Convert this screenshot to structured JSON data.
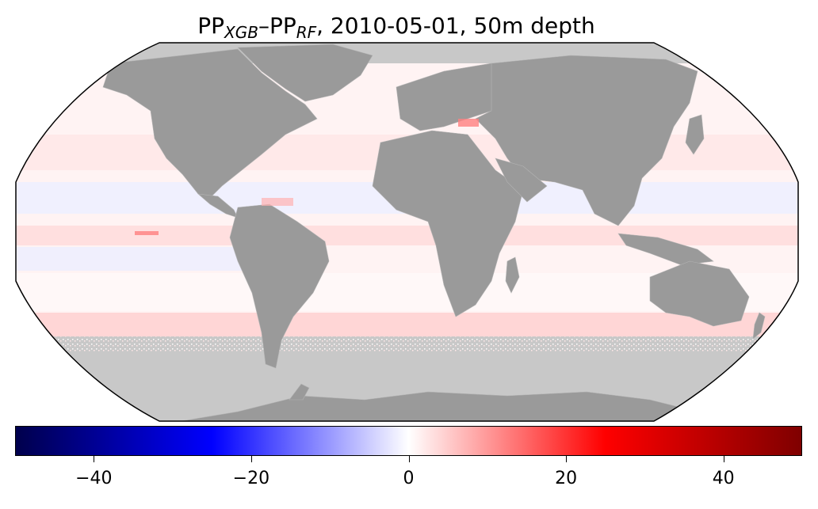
{
  "title": {
    "prefix": "PP",
    "sub1": "XGB",
    "dash": "–PP",
    "sub2": "RF",
    "suffix": ", 2010-05-01, 50m depth"
  },
  "colors": {
    "land": "#9a9a9a",
    "nodata": "#c8c8c8",
    "ocean_base": "#fff4f4",
    "border": "#000000",
    "colormap": [
      "#00004c",
      "#0000ff",
      "#ffffff",
      "#ff0000",
      "#7f0000"
    ]
  },
  "colorbar": {
    "min": -50,
    "max": 50,
    "ticks": [
      {
        "value": -40,
        "label": "−40"
      },
      {
        "value": -20,
        "label": "−20"
      },
      {
        "value": 0,
        "label": "0"
      },
      {
        "value": 20,
        "label": "20"
      },
      {
        "value": 40,
        "label": "40"
      }
    ]
  }
}
